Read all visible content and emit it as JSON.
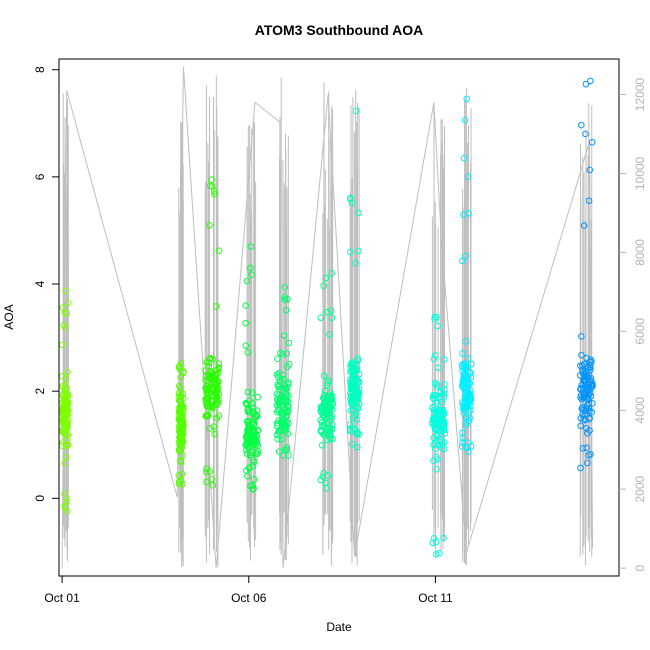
{
  "chart_data": {
    "type": "scatter",
    "title": "ATOM3 Southbound AOA",
    "xlabel": "Date",
    "ylabel": "AOA",
    "y_right_label": "",
    "x_range_days": [
      "2018-09-30T22:00",
      "2018-10-15T22:00"
    ],
    "ylim": [
      -1.45,
      8.2
    ],
    "y2lim": [
      -200,
      12900
    ],
    "x_ticks": [
      {
        "date": "2018-10-01",
        "label": "Oct 01"
      },
      {
        "date": "2018-10-06",
        "label": "Oct 06"
      },
      {
        "date": "2018-10-11",
        "label": "Oct 11"
      }
    ],
    "y_ticks": [
      0,
      2,
      4,
      6,
      8
    ],
    "y2_ticks": [
      0,
      2000,
      4000,
      6000,
      8000,
      10000,
      12000
    ],
    "grid": false,
    "legend": "none",
    "series": [
      {
        "kind": "points",
        "color_scale": "rainbow by time (yellow-green to blue)",
        "clusters": [
          {
            "start": "2018-10-01T00:00",
            "end": "2018-10-01T04:00",
            "aoa_min": -0.3,
            "aoa_max": 4.15,
            "aoa_center": 1.6,
            "color": "#7fff00"
          },
          {
            "start": "2018-10-04T03:00",
            "end": "2018-10-04T06:00",
            "aoa_min": 0.25,
            "aoa_max": 2.55,
            "aoa_center": 1.4,
            "color": "#55ff00"
          },
          {
            "start": "2018-10-04T20:00",
            "end": "2018-10-05T05:00",
            "aoa_min": 0.2,
            "aoa_max": 5.95,
            "aoa_center": 1.9,
            "color": "#2aff00"
          },
          {
            "start": "2018-10-05T22:00",
            "end": "2018-10-06T06:00",
            "aoa_min": 0.1,
            "aoa_max": 4.9,
            "aoa_center": 1.2,
            "color": "#00ff40"
          },
          {
            "start": "2018-10-06T18:00",
            "end": "2018-10-07T02:00",
            "aoa_min": 0.7,
            "aoa_max": 4.0,
            "aoa_center": 1.8,
            "color": "#00ff6a"
          },
          {
            "start": "2018-10-07T22:00",
            "end": "2018-10-08T06:00",
            "aoa_min": 0.1,
            "aoa_max": 4.25,
            "aoa_center": 1.6,
            "color": "#00ff95"
          },
          {
            "start": "2018-10-08T17:00",
            "end": "2018-10-08T23:00",
            "aoa_min": 0.95,
            "aoa_max": 7.65,
            "aoa_center": 2.0,
            "color": "#00ffc0"
          },
          {
            "start": "2018-10-10T22:00",
            "end": "2018-10-11T06:00",
            "aoa_min": -1.05,
            "aoa_max": 3.4,
            "aoa_center": 1.5,
            "color": "#00ffe0"
          },
          {
            "start": "2018-10-11T17:00",
            "end": "2018-10-11T23:00",
            "aoa_min": 0.7,
            "aoa_max": 7.65,
            "aoa_center": 2.0,
            "color": "#00f0ff"
          },
          {
            "start": "2018-10-14T21:00",
            "end": "2018-10-15T05:00",
            "aoa_min": 0.55,
            "aoa_max": 7.8,
            "aoa_center": 2.0,
            "color": "#0095ff"
          }
        ]
      },
      {
        "kind": "line",
        "axis": "right",
        "color": "#bebebe",
        "description_values": [
          {
            "t": "2018-10-01T00:00",
            "v": 0
          },
          {
            "t": "2018-10-01T03:00",
            "v": 12100
          },
          {
            "t": "2018-10-04T02:00",
            "v": 1800
          },
          {
            "t": "2018-10-04T06:00",
            "v": 12700
          },
          {
            "t": "2018-10-05T03:00",
            "v": 0
          },
          {
            "t": "2018-10-06T04:00",
            "v": 11800
          },
          {
            "t": "2018-10-06T20:00",
            "v": 11300
          },
          {
            "t": "2018-10-06T22:00",
            "v": 0
          },
          {
            "t": "2018-10-08T03:00",
            "v": 12000
          },
          {
            "t": "2018-10-08T20:00",
            "v": 300
          },
          {
            "t": "2018-10-10T23:00",
            "v": 11800
          },
          {
            "t": "2018-10-11T04:00",
            "v": 8200
          },
          {
            "t": "2018-10-11T20:00",
            "v": 400
          },
          {
            "t": "2018-10-15T03:00",
            "v": 10800
          },
          {
            "t": "2018-10-15T05:00",
            "v": 500
          }
        ]
      }
    ]
  }
}
